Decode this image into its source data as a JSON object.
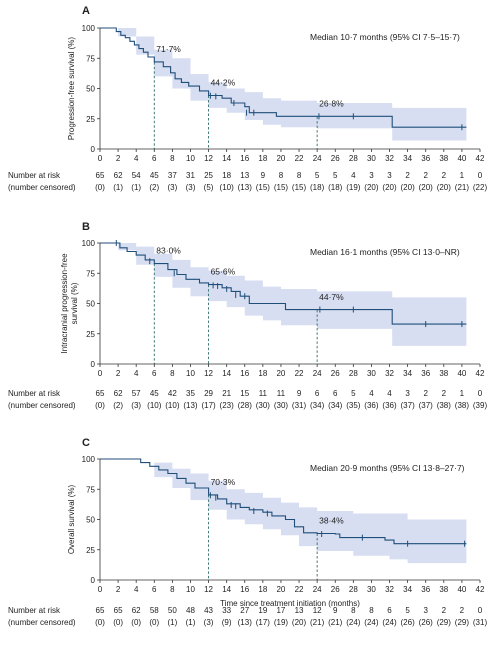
{
  "style": {
    "curve_color": "#1f4e79",
    "band_color": "#c9d3ee",
    "dash_color": "#2e6e6a"
  },
  "chart_data": [
    {
      "type": "line",
      "panel": "A",
      "ylabel": "Progression-free survival (%)",
      "xlabel": "",
      "median_label": "Median 10·7 months (95% CI 7·5–15·7)",
      "xlim": [
        0,
        42
      ],
      "ylim": [
        0,
        100
      ],
      "xticks": [
        0,
        2,
        4,
        6,
        8,
        10,
        12,
        14,
        16,
        18,
        20,
        22,
        24,
        26,
        28,
        30,
        32,
        34,
        36,
        38,
        40,
        42
      ],
      "yticks": [
        0,
        25,
        50,
        75,
        100
      ],
      "annotations": [
        {
          "x": 6,
          "y": 71.7,
          "label": "71·7%"
        },
        {
          "x": 12,
          "y": 44.2,
          "label": "44·2%"
        },
        {
          "x": 24,
          "y": 26.8,
          "label": "26·8%"
        }
      ],
      "curve": [
        [
          0,
          100
        ],
        [
          1.5,
          100
        ],
        [
          1.8,
          97
        ],
        [
          2.3,
          94
        ],
        [
          2.8,
          92
        ],
        [
          3.3,
          89
        ],
        [
          3.8,
          86
        ],
        [
          4.3,
          83
        ],
        [
          4.8,
          80
        ],
        [
          5.3,
          76
        ],
        [
          6,
          72
        ],
        [
          7,
          68
        ],
        [
          7.8,
          63
        ],
        [
          8.3,
          58
        ],
        [
          9,
          55
        ],
        [
          9.8,
          52
        ],
        [
          11,
          48
        ],
        [
          12,
          44.2
        ],
        [
          13.5,
          42
        ],
        [
          14.5,
          38
        ],
        [
          16,
          35
        ],
        [
          16.5,
          30
        ],
        [
          19,
          30
        ],
        [
          19.5,
          27
        ],
        [
          32,
          27
        ],
        [
          32.3,
          18
        ],
        [
          40.5,
          18
        ]
      ],
      "upper": [
        [
          0,
          100
        ],
        [
          2,
          100
        ],
        [
          4,
          93
        ],
        [
          6,
          82
        ],
        [
          8,
          75
        ],
        [
          10,
          62
        ],
        [
          12,
          55
        ],
        [
          14,
          50
        ],
        [
          16,
          47
        ],
        [
          18,
          42
        ],
        [
          20,
          40
        ],
        [
          24,
          38
        ],
        [
          32,
          38
        ],
        [
          32.3,
          34
        ],
        [
          40.5,
          34
        ]
      ],
      "lower": [
        [
          0,
          100
        ],
        [
          2,
          93
        ],
        [
          4,
          78
        ],
        [
          6,
          60
        ],
        [
          8,
          50
        ],
        [
          10,
          40
        ],
        [
          12,
          34
        ],
        [
          14,
          30
        ],
        [
          16,
          24
        ],
        [
          18,
          20
        ],
        [
          20,
          18
        ],
        [
          24,
          17
        ],
        [
          32,
          17
        ],
        [
          32.3,
          7
        ],
        [
          40.5,
          7
        ]
      ],
      "censor": [
        [
          12.2,
          44
        ],
        [
          12.8,
          43.5
        ],
        [
          14.8,
          38
        ],
        [
          16.2,
          30
        ],
        [
          17,
          30
        ],
        [
          24.2,
          27
        ],
        [
          28,
          27
        ],
        [
          40,
          18
        ]
      ],
      "risk_x": [
        0,
        2,
        4,
        6,
        8,
        10,
        12,
        14,
        16,
        18,
        20,
        22,
        24,
        26,
        28,
        30,
        32,
        34,
        36,
        38,
        40,
        42
      ],
      "at_risk": [
        "65",
        "62",
        "54",
        "45",
        "37",
        "31",
        "25",
        "18",
        "13",
        "9",
        "8",
        "8",
        "5",
        "5",
        "4",
        "3",
        "3",
        "2",
        "2",
        "2",
        "1",
        "0"
      ],
      "censored": [
        "(0)",
        "(1)",
        "(1)",
        "(2)",
        "(3)",
        "(3)",
        "(5)",
        "(10)",
        "(13)",
        "(15)",
        "(15)",
        "(15)",
        "(18)",
        "(18)",
        "(19)",
        "(20)",
        "(20)",
        "(20)",
        "(20)",
        "(20)",
        "(21)",
        "(22)"
      ]
    },
    {
      "type": "line",
      "panel": "B",
      "ylabel": "Intracranial progression-free survival (%)",
      "xlabel": "",
      "median_label": "Median 16·1 months (95% CI 13·0–NR)",
      "xlim": [
        0,
        42
      ],
      "ylim": [
        0,
        100
      ],
      "xticks": [
        0,
        2,
        4,
        6,
        8,
        10,
        12,
        14,
        16,
        18,
        20,
        22,
        24,
        26,
        28,
        30,
        32,
        34,
        36,
        38,
        40,
        42
      ],
      "yticks": [
        0,
        25,
        50,
        75,
        100
      ],
      "annotations": [
        {
          "x": 6,
          "y": 83.0,
          "label": "83·0%"
        },
        {
          "x": 12,
          "y": 65.6,
          "label": "65·6%"
        },
        {
          "x": 24,
          "y": 44.7,
          "label": "44·7%"
        }
      ],
      "curve": [
        [
          0,
          100
        ],
        [
          1.8,
          100
        ],
        [
          2.2,
          96
        ],
        [
          3,
          93
        ],
        [
          4,
          90
        ],
        [
          5,
          86
        ],
        [
          6,
          83
        ],
        [
          7.5,
          78
        ],
        [
          8.5,
          74
        ],
        [
          9.5,
          70
        ],
        [
          11,
          67
        ],
        [
          12,
          65.6
        ],
        [
          13.5,
          63
        ],
        [
          14.5,
          60
        ],
        [
          15.5,
          56
        ],
        [
          16.5,
          50
        ],
        [
          20,
          50
        ],
        [
          20.5,
          45
        ],
        [
          32,
          45
        ],
        [
          32.3,
          33
        ],
        [
          40.5,
          33
        ]
      ],
      "upper": [
        [
          0,
          100
        ],
        [
          2,
          100
        ],
        [
          4,
          97
        ],
        [
          6,
          91
        ],
        [
          8,
          86
        ],
        [
          10,
          80
        ],
        [
          12,
          77
        ],
        [
          14,
          73
        ],
        [
          16,
          69
        ],
        [
          18,
          64
        ],
        [
          20,
          62
        ],
        [
          24,
          60
        ],
        [
          32,
          60
        ],
        [
          32.3,
          55
        ],
        [
          40.5,
          55
        ]
      ],
      "lower": [
        [
          0,
          100
        ],
        [
          2,
          94
        ],
        [
          4,
          82
        ],
        [
          6,
          72
        ],
        [
          8,
          63
        ],
        [
          10,
          56
        ],
        [
          12,
          52
        ],
        [
          14,
          47
        ],
        [
          16,
          40
        ],
        [
          18,
          36
        ],
        [
          20,
          32
        ],
        [
          24,
          29
        ],
        [
          32,
          29
        ],
        [
          32.3,
          15
        ],
        [
          40.5,
          15
        ]
      ],
      "censor": [
        [
          1.8,
          100
        ],
        [
          5.5,
          85
        ],
        [
          8.2,
          75
        ],
        [
          12.5,
          65
        ],
        [
          13,
          64.5
        ],
        [
          14,
          62
        ],
        [
          15,
          57
        ],
        [
          16,
          56
        ],
        [
          24.3,
          45
        ],
        [
          28,
          45
        ],
        [
          36,
          33
        ],
        [
          40,
          33
        ]
      ],
      "risk_x": [
        0,
        2,
        4,
        6,
        8,
        10,
        12,
        14,
        16,
        18,
        20,
        22,
        24,
        26,
        28,
        30,
        32,
        34,
        36,
        38,
        40,
        42
      ],
      "at_risk": [
        "65",
        "62",
        "57",
        "45",
        "42",
        "35",
        "29",
        "21",
        "15",
        "11",
        "11",
        "9",
        "6",
        "6",
        "5",
        "4",
        "4",
        "3",
        "2",
        "2",
        "1",
        "0"
      ],
      "censored": [
        "(0)",
        "(2)",
        "(3)",
        "(10)",
        "(10)",
        "(13)",
        "(17)",
        "(23)",
        "(28)",
        "(30)",
        "(30)",
        "(31)",
        "(34)",
        "(34)",
        "(35)",
        "(36)",
        "(36)",
        "(37)",
        "(37)",
        "(38)",
        "(38)",
        "(39)"
      ]
    },
    {
      "type": "line",
      "panel": "C",
      "ylabel": "Overall survival (%)",
      "xlabel": "Time since treatment initiation (months)",
      "median_label": "Median 20·9 months (95% CI 13·8–27·7)",
      "xlim": [
        0,
        42
      ],
      "ylim": [
        0,
        100
      ],
      "xticks": [
        0,
        2,
        4,
        6,
        8,
        10,
        12,
        14,
        16,
        18,
        20,
        22,
        24,
        26,
        28,
        30,
        32,
        34,
        36,
        38,
        40,
        42
      ],
      "yticks": [
        0,
        25,
        50,
        75,
        100
      ],
      "annotations": [
        {
          "x": 12,
          "y": 70.3,
          "label": "70·3%"
        },
        {
          "x": 24,
          "y": 38.4,
          "label": "38·4%"
        }
      ],
      "curve": [
        [
          0,
          100
        ],
        [
          4,
          100
        ],
        [
          4.5,
          97
        ],
        [
          5.5,
          94
        ],
        [
          6.5,
          91
        ],
        [
          7.5,
          88
        ],
        [
          8.5,
          84
        ],
        [
          9.5,
          80
        ],
        [
          10.5,
          76
        ],
        [
          12,
          70.3
        ],
        [
          13,
          67
        ],
        [
          14,
          63
        ],
        [
          15.5,
          60
        ],
        [
          16.5,
          58
        ],
        [
          18,
          56
        ],
        [
          19,
          53
        ],
        [
          20.5,
          50
        ],
        [
          21.5,
          44
        ],
        [
          22.5,
          39
        ],
        [
          24,
          38.4
        ],
        [
          26,
          38
        ],
        [
          26.5,
          35
        ],
        [
          31,
          35
        ],
        [
          31.5,
          33
        ],
        [
          32.5,
          30
        ],
        [
          40.5,
          30
        ]
      ],
      "upper": [
        [
          0,
          100
        ],
        [
          4,
          100
        ],
        [
          6,
          97
        ],
        [
          8,
          92
        ],
        [
          10,
          88
        ],
        [
          12,
          82
        ],
        [
          14,
          75
        ],
        [
          16,
          72
        ],
        [
          18,
          68
        ],
        [
          20,
          64
        ],
        [
          22,
          60
        ],
        [
          24,
          57
        ],
        [
          26,
          57
        ],
        [
          28,
          55
        ],
        [
          32,
          55
        ],
        [
          34,
          50
        ],
        [
          40.5,
          50
        ]
      ],
      "lower": [
        [
          0,
          100
        ],
        [
          4,
          100
        ],
        [
          6,
          85
        ],
        [
          8,
          76
        ],
        [
          10,
          66
        ],
        [
          12,
          58
        ],
        [
          14,
          50
        ],
        [
          16,
          46
        ],
        [
          18,
          42
        ],
        [
          20,
          37
        ],
        [
          22,
          28
        ],
        [
          24,
          24
        ],
        [
          26,
          24
        ],
        [
          28,
          20
        ],
        [
          32,
          17
        ],
        [
          34,
          14
        ],
        [
          40.5,
          14
        ]
      ],
      "censor": [
        [
          12.2,
          70
        ],
        [
          12.8,
          68
        ],
        [
          14.5,
          62
        ],
        [
          15,
          61
        ],
        [
          17,
          57
        ],
        [
          18.5,
          55
        ],
        [
          24.5,
          38
        ],
        [
          29,
          35
        ],
        [
          34,
          30
        ],
        [
          40.3,
          30
        ]
      ],
      "risk_x": [
        0,
        2,
        4,
        6,
        8,
        10,
        12,
        14,
        16,
        18,
        20,
        22,
        24,
        26,
        28,
        30,
        32,
        34,
        36,
        38,
        40,
        42
      ],
      "at_risk": [
        "65",
        "65",
        "62",
        "58",
        "50",
        "48",
        "43",
        "33",
        "27",
        "19",
        "17",
        "13",
        "12",
        "9",
        "8",
        "8",
        "6",
        "5",
        "3",
        "2",
        "2",
        "0"
      ],
      "censored": [
        "(0)",
        "(0)",
        "(0)",
        "(0)",
        "(1)",
        "(1)",
        "(3)",
        "(9)",
        "(13)",
        "(17)",
        "(19)",
        "(20)",
        "(21)",
        "(21)",
        "(24)",
        "(24)",
        "(24)",
        "(26)",
        "(26)",
        "(29)",
        "(29)",
        "(31)"
      ]
    }
  ],
  "risk_labels": {
    "at_risk": "Number at risk",
    "censored": "(number censored)"
  }
}
